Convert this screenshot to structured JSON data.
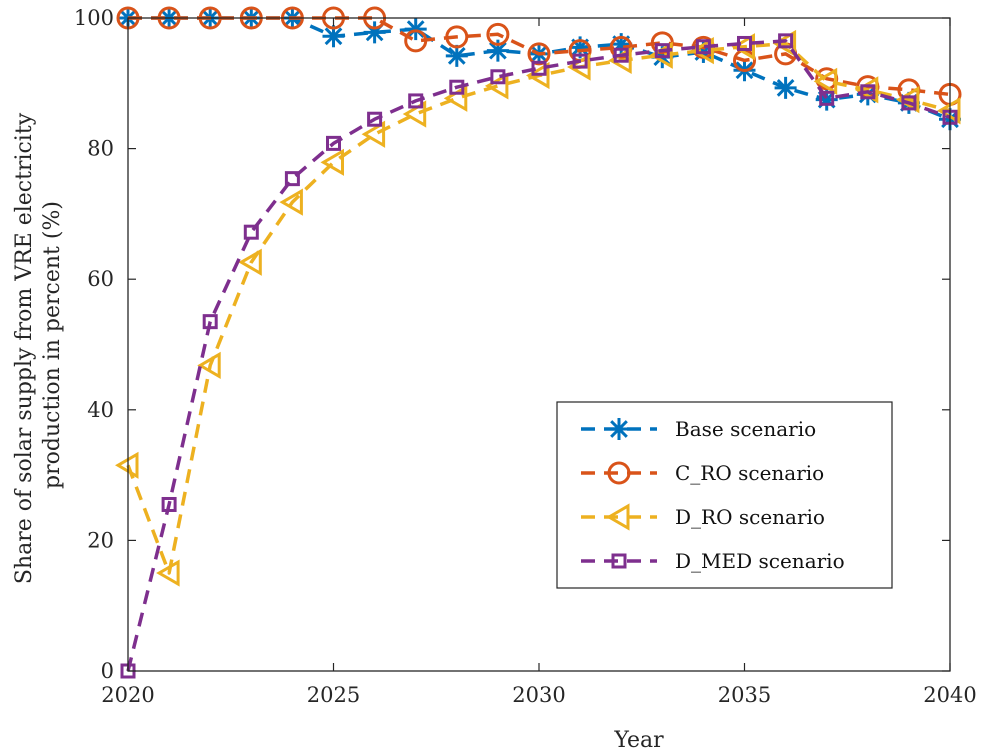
{
  "chart_data": {
    "type": "line",
    "title": "",
    "xlabel": "Year",
    "ylabel_lines": [
      "Share of solar supply from VRE electricity",
      "production in percent (%)"
    ],
    "xlim": [
      2020,
      2040
    ],
    "ylim": [
      0,
      100
    ],
    "xticks": [
      "2020",
      "2025",
      "2030",
      "2035",
      "2040"
    ],
    "yticks": [
      "0",
      "20",
      "40",
      "60",
      "80",
      "100"
    ],
    "grid": false,
    "legend_position": "lower-right",
    "x": [
      2020,
      2021,
      2022,
      2023,
      2024,
      2025,
      2026,
      2027,
      2028,
      2029,
      2030,
      2031,
      2032,
      2033,
      2034,
      2035,
      2036,
      2037,
      2038,
      2039,
      2040
    ],
    "series": [
      {
        "name": "Base scenario",
        "color": "#0072BD",
        "marker": "asterisk",
        "values": [
          100,
          100,
          100,
          100,
          100,
          97.2,
          97.8,
          98.3,
          94.2,
          95.0,
          94.5,
          95.5,
          96.0,
          94.0,
          94.8,
          92.0,
          89.3,
          87.5,
          88.3,
          87.0,
          84.5
        ]
      },
      {
        "name": "C_RO scenario",
        "color": "#D95319",
        "marker": "circle",
        "values": [
          100,
          100,
          100,
          100,
          100,
          100,
          100,
          96.5,
          97.1,
          97.5,
          94.5,
          95.0,
          95.5,
          96.2,
          95.5,
          93.5,
          94.5,
          90.7,
          89.5,
          89.0,
          88.3
        ]
      },
      {
        "name": "D_RO scenario",
        "color": "#EDB120",
        "marker": "triangle-left",
        "values": [
          31.5,
          15.0,
          46.8,
          62.6,
          71.8,
          77.9,
          82.2,
          85.3,
          87.7,
          89.6,
          91.2,
          92.5,
          93.5,
          94.3,
          95.0,
          95.6,
          96.1,
          90.3,
          89.0,
          87.5,
          85.8
        ]
      },
      {
        "name": "D_MED scenario",
        "color": "#7E2F8E",
        "marker": "square",
        "values": [
          0,
          25.5,
          53.5,
          67.2,
          75.4,
          80.8,
          84.5,
          87.3,
          89.4,
          91.0,
          92.3,
          93.4,
          94.3,
          95.0,
          95.6,
          96.1,
          96.5,
          87.7,
          88.7,
          87.0,
          84.8
        ]
      }
    ]
  }
}
